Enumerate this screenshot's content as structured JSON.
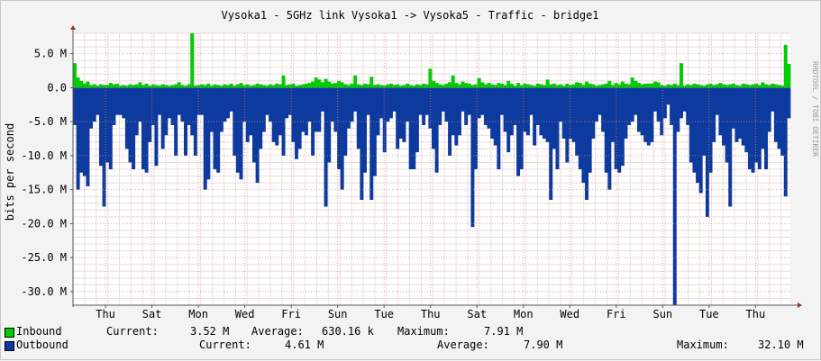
{
  "chart_data": {
    "type": "area",
    "title": "Vysoka1 - 5GHz link Vysoka1 -> Vysoka5 - Traffic - bridge1",
    "ylabel": "bits per second",
    "watermark": "RRDTOOL / TOBI OETIKER",
    "ylim": [
      -32,
      8
    ],
    "grid": true,
    "legend_position": "bottom",
    "y_ticks": [
      {
        "value": 5,
        "label": "5.0 M"
      },
      {
        "value": 0,
        "label": "0.0"
      },
      {
        "value": -5,
        "label": "-5.0 M"
      },
      {
        "value": -10,
        "label": "-10.0 M"
      },
      {
        "value": -15,
        "label": "-15.0 M"
      },
      {
        "value": -20,
        "label": "-20.0 M"
      },
      {
        "value": -25,
        "label": "-25.0 M"
      },
      {
        "value": -30,
        "label": "-30.0 M"
      }
    ],
    "x_ticks": [
      "Thu",
      "Sat",
      "Mon",
      "Wed",
      "Fri",
      "Sun",
      "Tue",
      "Thu",
      "Sat",
      "Mon",
      "Wed",
      "Fri",
      "Sun",
      "Tue",
      "Thu"
    ],
    "x_tick_days": [
      1.4,
      3.4,
      5.4,
      7.4,
      9.4,
      11.4,
      13.4,
      15.4,
      17.4,
      19.4,
      21.4,
      23.4,
      25.4,
      27.4,
      29.4
    ],
    "x_range_days": [
      0,
      30.9
    ],
    "series": [
      {
        "name": "Inbound",
        "color": "#00cc00",
        "values": [
          3.6,
          1.5,
          1.0,
          0.6,
          0.9,
          0.4,
          0.5,
          0.3,
          0.5,
          0.4,
          0.4,
          0.7,
          0.5,
          0.6,
          0.3,
          0.4,
          0.3,
          0.5,
          0.4,
          0.5,
          0.8,
          0.4,
          0.6,
          0.3,
          0.5,
          0.4,
          0.3,
          0.5,
          0.4,
          0.3,
          0.4,
          0.5,
          0.8,
          0.4,
          0.3,
          0.5,
          8.0,
          0.3,
          0.4,
          0.5,
          0.4,
          0.6,
          0.3,
          0.5,
          0.4,
          0.3,
          0.5,
          0.4,
          0.6,
          0.3,
          0.5,
          0.7,
          0.4,
          0.5,
          0.3,
          0.4,
          0.6,
          0.5,
          0.4,
          0.3,
          0.5,
          0.4,
          0.6,
          0.5,
          1.8,
          0.4,
          0.5,
          0.6,
          0.3,
          0.4,
          0.5,
          0.6,
          0.7,
          0.9,
          1.5,
          1.2,
          0.8,
          1.3,
          0.9,
          0.6,
          0.7,
          1.0,
          0.8,
          0.5,
          0.4,
          0.6,
          1.8,
          0.5,
          0.4,
          0.6,
          0.5,
          1.6,
          0.4,
          0.5,
          0.4,
          0.3,
          0.5,
          0.6,
          0.4,
          0.5,
          0.3,
          0.4,
          0.6,
          0.4,
          0.3,
          0.5,
          0.4,
          0.6,
          0.5,
          2.8,
          1.0,
          0.7,
          0.5,
          0.4,
          0.6,
          0.8,
          1.8,
          0.7,
          0.5,
          0.9,
          0.7,
          0.6,
          0.4,
          0.5,
          1.4,
          0.8,
          0.5,
          0.7,
          0.5,
          0.4,
          0.7,
          0.6,
          0.4,
          1.0,
          0.6,
          0.3,
          0.7,
          0.4,
          0.6,
          0.5,
          0.4,
          0.3,
          0.6,
          0.5,
          0.4,
          1.2,
          0.5,
          0.6,
          0.4,
          0.5,
          0.3,
          0.6,
          0.4,
          0.5,
          0.8,
          0.7,
          0.4,
          0.9,
          0.6,
          0.5,
          0.3,
          0.4,
          0.5,
          0.6,
          1.0,
          0.4,
          0.7,
          0.5,
          0.9,
          0.6,
          0.5,
          1.5,
          1.0,
          0.7,
          0.5,
          0.6,
          0.6,
          0.6,
          0.9,
          0.8,
          0.4,
          0.3,
          0.5,
          0.4,
          0.6,
          0.4,
          3.6,
          0.3,
          0.5,
          0.4,
          0.6,
          0.5,
          0.4,
          0.3,
          0.5,
          0.6,
          0.4,
          0.5,
          0.7,
          0.5,
          0.4,
          0.5,
          0.6,
          0.4,
          0.3,
          0.6,
          0.5,
          0.4,
          0.5,
          0.6,
          0.4,
          0.8,
          0.5,
          0.4,
          0.6,
          0.5,
          0.4,
          0.3,
          6.3,
          3.5
        ]
      },
      {
        "name": "Outbound",
        "color": "#0c3a9e",
        "values": [
          -5.5,
          -15.0,
          -12.5,
          -13.0,
          -14.5,
          -6.0,
          -5.0,
          -4.0,
          -11.5,
          -17.5,
          -11.0,
          -12.0,
          -5.5,
          -4.0,
          -4.0,
          -4.5,
          -9.0,
          -11.0,
          -12.0,
          -7.0,
          -5.0,
          -12.0,
          -12.5,
          -8.0,
          -5.5,
          -11.5,
          -4.0,
          -9.0,
          -7.0,
          -4.5,
          -5.5,
          -10.0,
          -4.0,
          -5.0,
          -10.0,
          -5.5,
          -7.0,
          -10.0,
          -4.0,
          -4.0,
          -15.0,
          -13.5,
          -6.5,
          -12.0,
          -12.5,
          -6.5,
          -5.0,
          -4.5,
          -3.5,
          -10.0,
          -12.5,
          -13.5,
          -5.0,
          -8.0,
          -7.0,
          -11.0,
          -14.0,
          -9.0,
          -6.5,
          -4.0,
          -5.0,
          -8.0,
          -8.5,
          -7.0,
          -10.0,
          -4.5,
          -4.0,
          -8.0,
          -10.5,
          -9.0,
          -6.5,
          -7.0,
          -5.0,
          -10.0,
          -6.5,
          -6.5,
          -3.5,
          -17.5,
          -11.0,
          -5.0,
          -6.5,
          -12.0,
          -15.0,
          -10.0,
          -6.0,
          -5.0,
          -3.5,
          -9.0,
          -16.5,
          -12.5,
          -4.0,
          -16.5,
          -13.0,
          -7.0,
          -4.5,
          -9.5,
          -5.0,
          -4.5,
          -3.5,
          -9.0,
          -7.5,
          -8.0,
          -5.0,
          -12.0,
          -12.0,
          -9.5,
          -4.0,
          -5.5,
          -4.0,
          -6.0,
          -9.0,
          -12.5,
          -5.5,
          -3.5,
          -5.0,
          -10.0,
          -7.0,
          -8.5,
          -7.0,
          -3.5,
          -5.5,
          -4.0,
          -20.5,
          -12.0,
          -4.5,
          -4.0,
          -5.5,
          -6.0,
          -7.5,
          -8.5,
          -12.0,
          -4.0,
          -6.5,
          -9.5,
          -7.0,
          -5.5,
          -13.0,
          -12.0,
          -6.5,
          -7.0,
          -4.0,
          -8.5,
          -5.5,
          -7.0,
          -7.5,
          -8.0,
          -16.5,
          -9.0,
          -12.0,
          -5.0,
          -7.5,
          -11.0,
          -7.5,
          -8.0,
          -10.0,
          -12.0,
          -14.0,
          -16.5,
          -12.5,
          -7.5,
          -5.0,
          -4.0,
          -6.5,
          -12.5,
          -15.0,
          -8.0,
          -12.0,
          -12.5,
          -11.5,
          -7.5,
          -5.5,
          -5.0,
          -4.0,
          -6.5,
          -7.0,
          -8.0,
          -8.5,
          -8.0,
          -3.5,
          -5.0,
          -7.0,
          -4.5,
          -2.5,
          -5.5,
          -32.1,
          -6.5,
          -4.5,
          -3.5,
          -5.5,
          -11.0,
          -12.5,
          -14.0,
          -15.5,
          -10.0,
          -19.0,
          -12.5,
          -8.0,
          -4.0,
          -7.0,
          -8.5,
          -11.0,
          -17.5,
          -6.0,
          -8.0,
          -7.5,
          -8.5,
          -9.5,
          -12.0,
          -12.5,
          -11.0,
          -12.0,
          -9.0,
          -12.0,
          -6.5,
          -3.5,
          -8.0,
          -9.0,
          -10.0,
          -16.0,
          -4.5
        ]
      }
    ]
  },
  "legend": {
    "inbound": {
      "name": "Inbound",
      "current_label": "Current:",
      "current": "3.52 M",
      "average_label": "Average:",
      "average": "630.16 k",
      "maximum_label": "Maximum:",
      "maximum": "7.91 M",
      "color": "#00cc00"
    },
    "outbound": {
      "name": "Outbound",
      "current_label": "Current:",
      "current": "4.61 M",
      "average_label": "Average:",
      "average": "7.90 M",
      "maximum_label": "Maximum:",
      "maximum": "32.10 M",
      "color": "#0c3a9e"
    }
  }
}
